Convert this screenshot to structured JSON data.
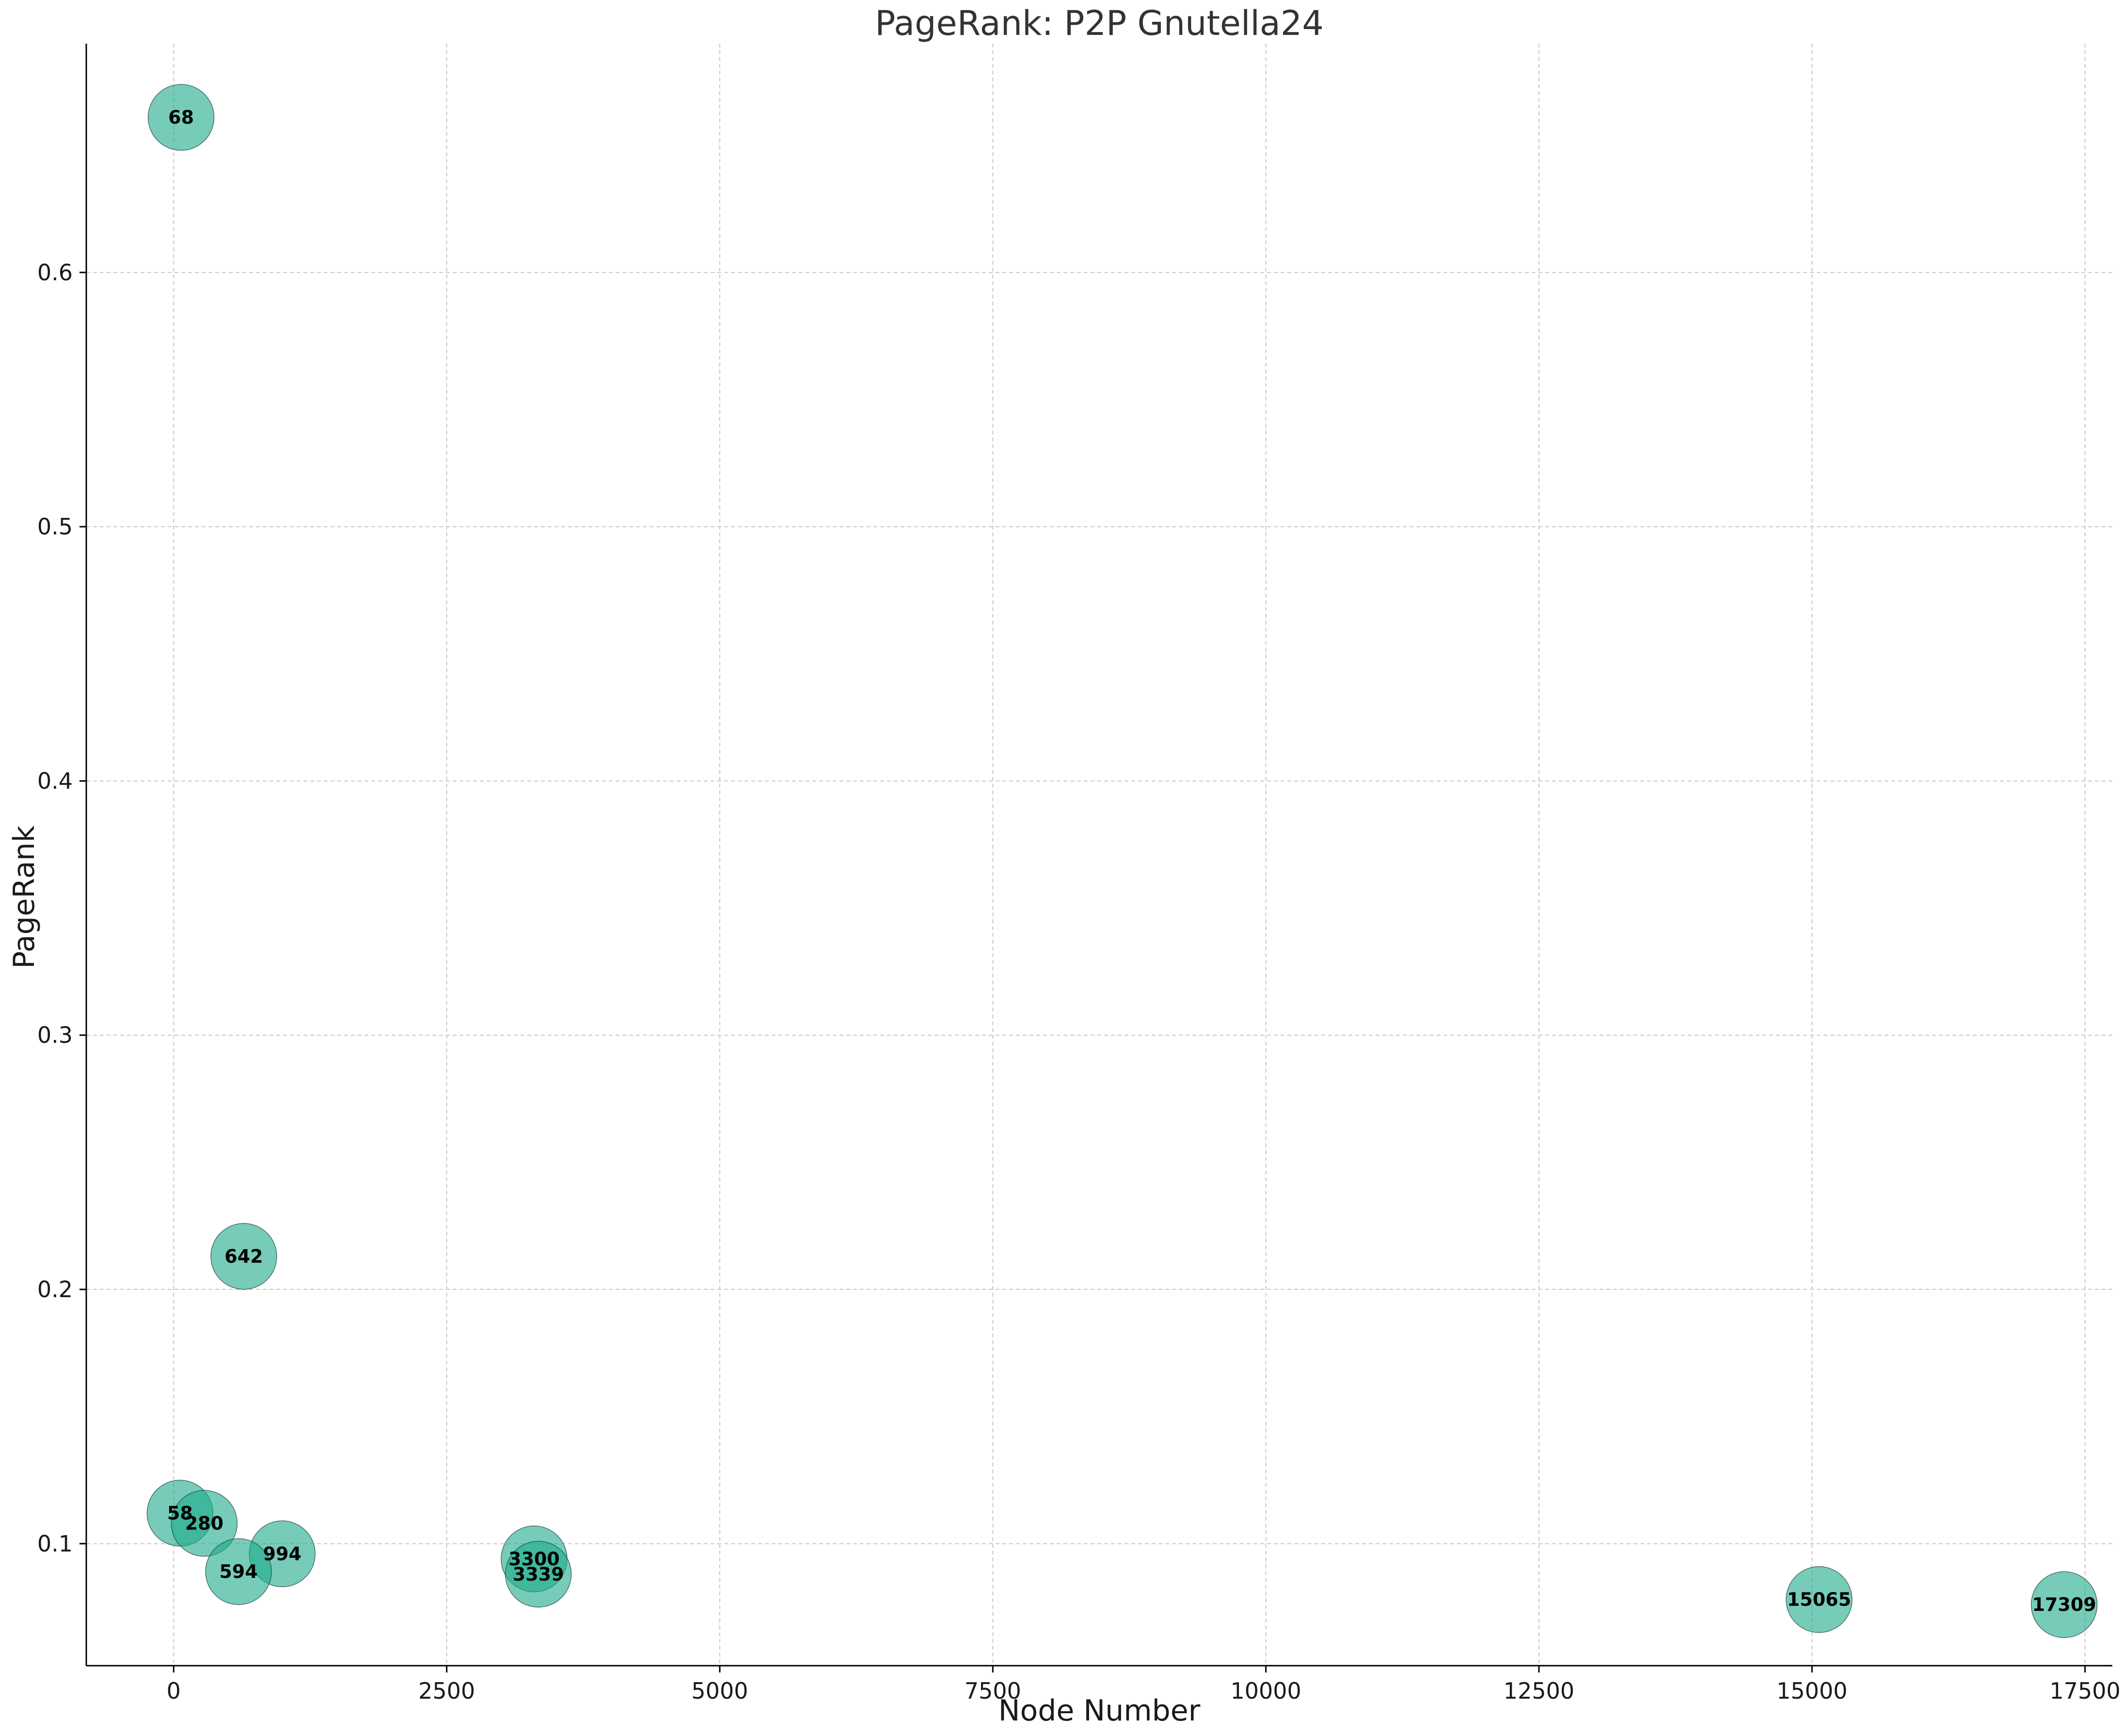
{
  "chart_data": {
    "type": "scatter",
    "title": "PageRank: P2P Gnutella24",
    "xlabel": "Node Number",
    "ylabel": "PageRank",
    "xlim": [
      -800,
      17750
    ],
    "ylim": [
      0.052,
      0.69
    ],
    "xticks": [
      0,
      2500,
      5000,
      7500,
      10000,
      12500,
      15000,
      17500
    ],
    "yticks": [
      0.1,
      0.2,
      0.3,
      0.4,
      0.5,
      0.6
    ],
    "xtick_labels": [
      "0",
      "2500",
      "5000",
      "7500",
      "10000",
      "12500",
      "15000",
      "17500"
    ],
    "ytick_labels": [
      "0.1",
      "0.2",
      "0.3",
      "0.4",
      "0.5",
      "0.6"
    ],
    "grid": true,
    "marker_color": "#1aaa8a",
    "points": [
      {
        "label": "68",
        "x": 68,
        "y": 0.661
      },
      {
        "label": "642",
        "x": 642,
        "y": 0.213
      },
      {
        "label": "58",
        "x": 58,
        "y": 0.112
      },
      {
        "label": "280",
        "x": 280,
        "y": 0.108
      },
      {
        "label": "994",
        "x": 994,
        "y": 0.096
      },
      {
        "label": "594",
        "x": 594,
        "y": 0.089
      },
      {
        "label": "3300",
        "x": 3300,
        "y": 0.094
      },
      {
        "label": "3339",
        "x": 3339,
        "y": 0.088
      },
      {
        "label": "15065",
        "x": 15065,
        "y": 0.078
      },
      {
        "label": "17309",
        "x": 17309,
        "y": 0.076
      }
    ]
  }
}
